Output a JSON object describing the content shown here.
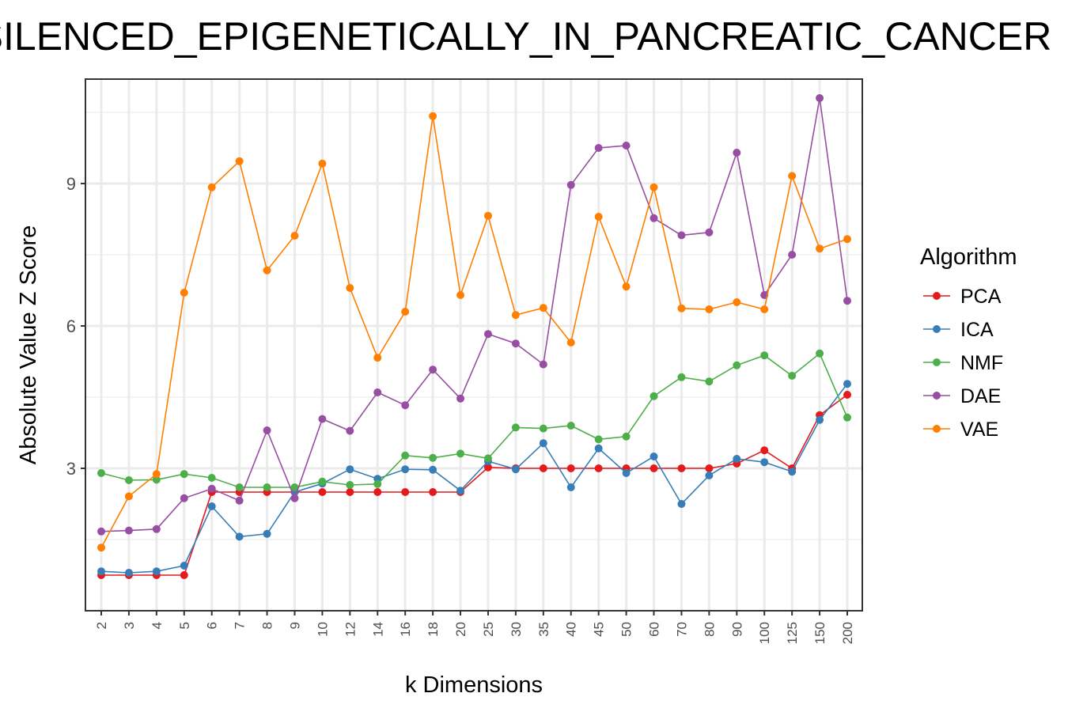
{
  "chart_data": {
    "type": "line",
    "title": "SILENCED_EPIGENETICALLY_IN_PANCREATIC_CANCER",
    "xlabel": "k Dimensions",
    "ylabel": "Absolute Value Z Score",
    "legend_title": "Algorithm",
    "legend_position": "right",
    "grid": true,
    "ylim": [
      0.0,
      11.2
    ],
    "yticks": [
      3,
      6,
      9
    ],
    "categories": [
      "2",
      "3",
      "4",
      "5",
      "6",
      "7",
      "8",
      "9",
      "10",
      "12",
      "14",
      "16",
      "18",
      "20",
      "25",
      "30",
      "35",
      "40",
      "45",
      "50",
      "60",
      "70",
      "80",
      "90",
      "100",
      "125",
      "150",
      "200"
    ],
    "series": [
      {
        "name": "PCA",
        "color": "#e41a1c",
        "values": [
          0.75,
          0.75,
          0.75,
          0.75,
          2.5,
          2.5,
          2.5,
          2.5,
          2.5,
          2.5,
          2.5,
          2.5,
          2.5,
          2.5,
          3.02,
          3.0,
          3.0,
          3.0,
          3.0,
          3.0,
          3.0,
          3.0,
          3.0,
          3.1,
          3.38,
          3.0,
          4.12,
          4.55
        ]
      },
      {
        "name": "ICA",
        "color": "#377eb8",
        "values": [
          0.83,
          0.8,
          0.83,
          0.95,
          2.2,
          1.56,
          1.62,
          2.5,
          2.68,
          2.98,
          2.78,
          2.98,
          2.97,
          2.53,
          3.15,
          2.98,
          3.53,
          2.6,
          3.42,
          2.9,
          3.25,
          2.25,
          2.85,
          3.2,
          3.13,
          2.93,
          4.02,
          4.78
        ]
      },
      {
        "name": "NMF",
        "color": "#4daf4a",
        "values": [
          2.9,
          2.75,
          2.76,
          2.88,
          2.8,
          2.6,
          2.6,
          2.6,
          2.72,
          2.65,
          2.67,
          3.27,
          3.22,
          3.31,
          3.21,
          3.86,
          3.84,
          3.9,
          3.61,
          3.67,
          4.52,
          4.92,
          4.83,
          5.17,
          5.38,
          4.95,
          5.42,
          4.07
        ]
      },
      {
        "name": "DAE",
        "color": "#984ea3",
        "values": [
          1.67,
          1.69,
          1.72,
          2.37,
          2.57,
          2.32,
          3.8,
          2.37,
          4.04,
          3.79,
          4.6,
          4.33,
          5.08,
          4.47,
          5.83,
          5.63,
          5.19,
          8.97,
          9.75,
          9.8,
          8.27,
          7.91,
          7.97,
          9.65,
          6.65,
          7.5,
          10.8,
          6.53
        ]
      },
      {
        "name": "VAE",
        "color": "#ff7f00",
        "values": [
          1.33,
          2.41,
          2.88,
          6.7,
          8.92,
          9.47,
          7.17,
          7.9,
          9.42,
          6.8,
          5.33,
          6.3,
          10.42,
          6.65,
          8.32,
          6.23,
          6.38,
          5.65,
          8.3,
          6.83,
          8.92,
          6.37,
          6.35,
          6.5,
          6.35,
          9.16,
          7.63,
          7.83
        ]
      }
    ]
  }
}
